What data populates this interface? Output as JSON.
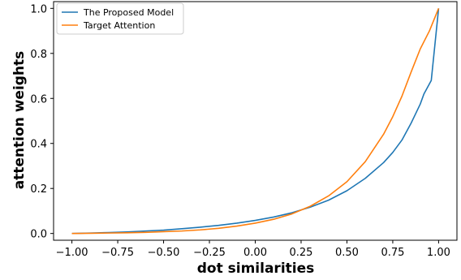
{
  "chart_data": {
    "type": "line",
    "title": "",
    "xlabel": "dot similarities",
    "ylabel": "attention weights",
    "xlim": [
      -1.1,
      1.1
    ],
    "ylim": [
      -0.03,
      1.03
    ],
    "xticks": [
      "−1.00",
      "−0.75",
      "−0.50",
      "−0.25",
      "0.00",
      "0.25",
      "0.50",
      "0.75",
      "1.00"
    ],
    "yticks": [
      "0.0",
      "0.2",
      "0.4",
      "0.6",
      "0.8",
      "1.0"
    ],
    "grid": false,
    "legend_position": "top-left",
    "x": [
      -1.0,
      -0.9,
      -0.8,
      -0.7,
      -0.6,
      -0.5,
      -0.4,
      -0.3,
      -0.2,
      -0.1,
      0.0,
      0.1,
      0.2,
      0.3,
      0.4,
      0.5,
      0.6,
      0.7,
      0.75,
      0.8,
      0.85,
      0.9,
      0.95,
      1.0
    ],
    "series": [
      {
        "name": "The Proposed Model",
        "color": "#1f77b4",
        "x": [
          -1.0,
          -0.9,
          -0.8,
          -0.7,
          -0.6,
          -0.5,
          -0.4,
          -0.3,
          -0.2,
          -0.1,
          0.0,
          0.1,
          0.2,
          0.3,
          0.4,
          0.5,
          0.6,
          0.7,
          0.75,
          0.8,
          0.85,
          0.9,
          0.92,
          0.96,
          1.0
        ],
        "values": [
          0.0,
          0.002,
          0.004,
          0.007,
          0.011,
          0.015,
          0.021,
          0.028,
          0.036,
          0.046,
          0.058,
          0.073,
          0.092,
          0.117,
          0.148,
          0.19,
          0.245,
          0.315,
          0.36,
          0.415,
          0.49,
          0.575,
          0.62,
          0.68,
          1.0
        ]
      },
      {
        "name": "Target Attention",
        "color": "#ff7f0e",
        "x": [
          -1.0,
          -0.9,
          -0.8,
          -0.7,
          -0.6,
          -0.5,
          -0.4,
          -0.3,
          -0.2,
          -0.1,
          0.0,
          0.1,
          0.2,
          0.3,
          0.4,
          0.5,
          0.6,
          0.7,
          0.75,
          0.8,
          0.85,
          0.9,
          0.95,
          1.0
        ],
        "values": [
          0.0,
          0.001,
          0.002,
          0.003,
          0.005,
          0.008,
          0.011,
          0.016,
          0.023,
          0.033,
          0.046,
          0.063,
          0.087,
          0.121,
          0.167,
          0.23,
          0.319,
          0.441,
          0.519,
          0.61,
          0.717,
          0.82,
          0.9,
          1.0
        ]
      }
    ]
  }
}
